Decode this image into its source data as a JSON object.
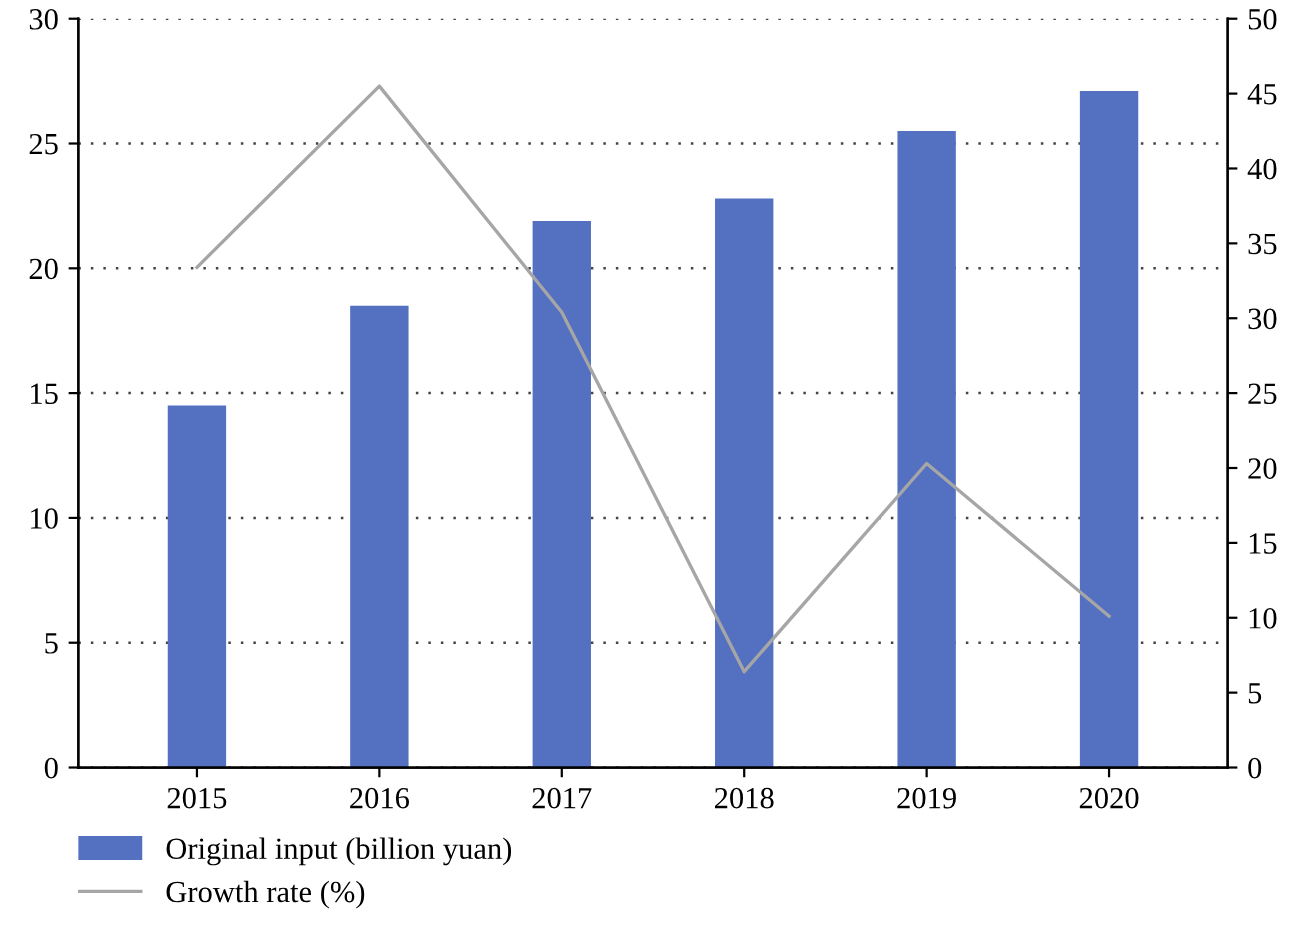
{
  "chart_data": {
    "type": "bar",
    "categories": [
      "2015",
      "2016",
      "2017",
      "2018",
      "2019",
      "2020"
    ],
    "series": [
      {
        "name": "Original input (billion yuan)",
        "color": "#5470c0",
        "values": [
          14.5,
          18.5,
          21.9,
          22.8,
          25.5,
          27.1
        ]
      },
      {
        "name": "Growth rate (%)",
        "type": "line",
        "axis": "y2",
        "color": "#a6a6a6",
        "values": [
          33.4,
          45.5,
          30.4,
          6.4,
          20.3,
          10.1
        ]
      }
    ],
    "ylim": [
      0,
      30
    ],
    "yticks": [
      0,
      5,
      10,
      15,
      20,
      25,
      30
    ],
    "y2lim": [
      0,
      50
    ],
    "y2ticks": [
      0,
      5,
      10,
      15,
      20,
      25,
      30,
      35,
      40,
      45,
      50
    ],
    "grid": "y",
    "legend": "bottom",
    "marker": "none",
    "line_style": "solid"
  }
}
